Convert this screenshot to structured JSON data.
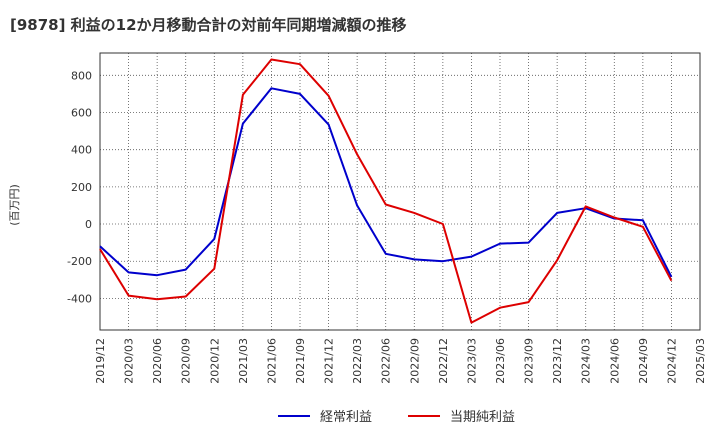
{
  "chart_data": {
    "type": "line",
    "title": "[9878]  利益の12か月移動合計の対前年同期増減額の推移",
    "ylabel": "(百万円)",
    "xlabel": "",
    "ylim": [
      -570,
      920
    ],
    "yticks": [
      -400,
      -200,
      0,
      200,
      400,
      600,
      800
    ],
    "categories": [
      "2019/12",
      "2020/03",
      "2020/06",
      "2020/09",
      "2020/12",
      "2021/03",
      "2021/06",
      "2021/09",
      "2021/12",
      "2022/03",
      "2022/06",
      "2022/09",
      "2022/12",
      "2023/03",
      "2023/06",
      "2023/09",
      "2023/12",
      "2024/03",
      "2024/06",
      "2024/09",
      "2024/12",
      "2025/03"
    ],
    "grid": true,
    "legend_position": "bottom",
    "series": [
      {
        "name": "経常利益",
        "color": "#0000cc",
        "values": [
          -120,
          -260,
          -275,
          -245,
          -80,
          540,
          730,
          700,
          535,
          100,
          -160,
          -190,
          -200,
          -175,
          -105,
          -100,
          60,
          85,
          30,
          20,
          -285,
          null
        ]
      },
      {
        "name": "当期純利益",
        "color": "#dd0000",
        "values": [
          -135,
          -385,
          -405,
          -390,
          -240,
          695,
          885,
          860,
          690,
          375,
          105,
          60,
          0,
          -530,
          -450,
          -420,
          -195,
          95,
          35,
          -15,
          -305,
          null
        ]
      }
    ]
  }
}
